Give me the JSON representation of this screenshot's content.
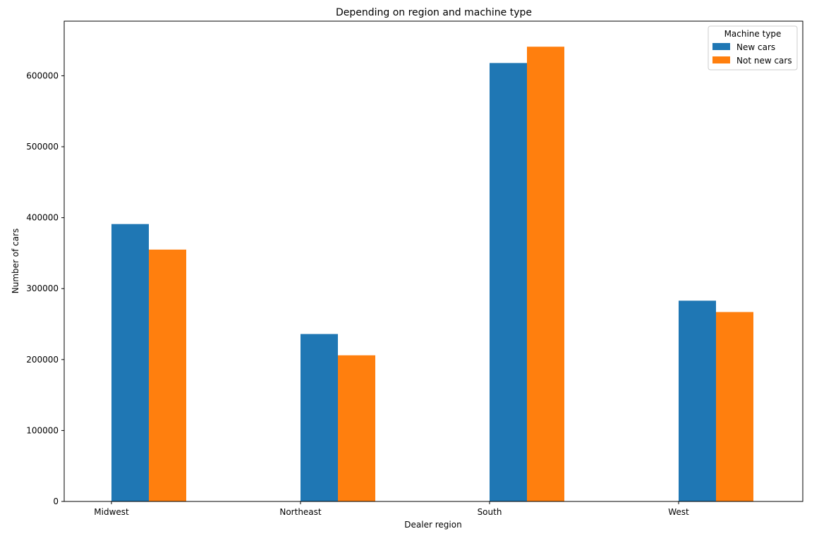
{
  "chart_data": {
    "type": "bar",
    "title": "Depending on region and machine type",
    "xlabel": "Dealer region",
    "ylabel": "Number of cars",
    "categories": [
      "Midwest",
      "Northeast",
      "South",
      "West"
    ],
    "series": [
      {
        "name": "New cars",
        "color": "#1f77b4",
        "values": [
          391000,
          236000,
          618000,
          283000
        ]
      },
      {
        "name": "Not new cars",
        "color": "#ff7f0e",
        "values": [
          355000,
          206000,
          641000,
          267000
        ]
      }
    ],
    "ylim": [
      0,
      677000
    ],
    "yticks": [
      0,
      100000,
      200000,
      300000,
      400000,
      500000,
      600000
    ],
    "ytick_labels": [
      "0",
      "100000",
      "200000",
      "300000",
      "400000",
      "500000",
      "600000"
    ],
    "grid": false,
    "legend": {
      "title": "Machine type",
      "placement": "top-right"
    }
  }
}
